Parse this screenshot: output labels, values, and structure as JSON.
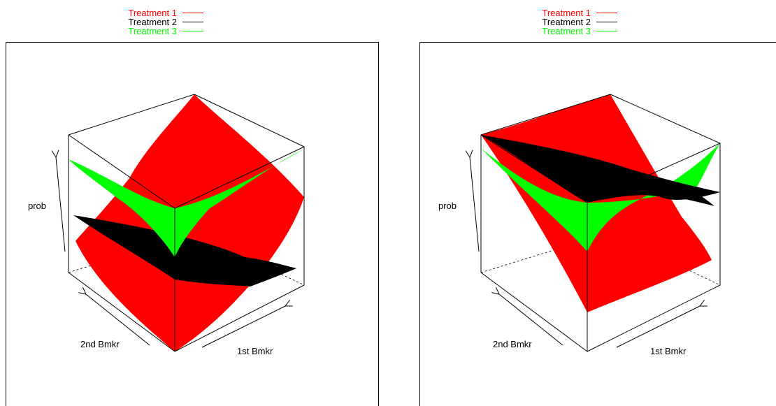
{
  "chart_data": [
    {
      "type": "surface",
      "legend": {
        "placement": "top",
        "entries": [
          {
            "name": "Treatment 1",
            "color": "#ff0000"
          },
          {
            "name": "Treatment 2",
            "color": "#000000"
          },
          {
            "name": "Treatment 3",
            "color": "#00ff00"
          }
        ]
      },
      "zlabel": "prob",
      "ylabel": "2nd Bmkr",
      "xlabel": "1st Bmkr"
    },
    {
      "type": "surface",
      "legend": {
        "placement": "top",
        "entries": [
          {
            "name": "Treatment 1",
            "color": "#ff0000"
          },
          {
            "name": "Treatment 2",
            "color": "#000000"
          },
          {
            "name": "Treatment 3",
            "color": "#00ff00"
          }
        ]
      },
      "zlabel": "prob",
      "ylabel": "2nd Bmkr",
      "xlabel": "1st Bmkr"
    }
  ]
}
